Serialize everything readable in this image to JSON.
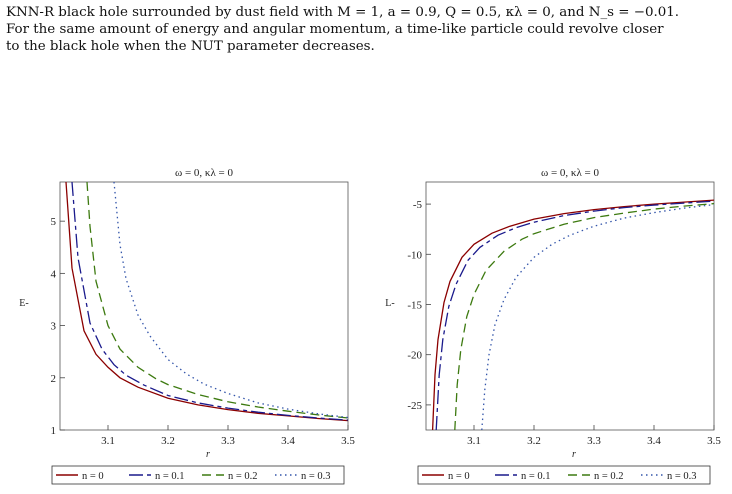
{
  "caption": {
    "line1": "KNN-R black hole surrounded by dust field with M = 1, a = 0.9, Q = 0.5, κλ = 0, and N_s = −0.01.",
    "line2": "For the same amount of energy and angular momentum, a time-like particle could revolve closer",
    "line3": "to the black hole when the NUT parameter decreases."
  },
  "colors": {
    "n0": "#8b0000",
    "n01": "#1a1a8c",
    "n02": "#3d7a10",
    "n03": "#3355aa"
  },
  "chart_data": [
    {
      "type": "line",
      "title": "ω = 0, κλ = 0",
      "xlabel": "r",
      "ylabel": "E-",
      "xlim": [
        3.02,
        3.5
      ],
      "ylim": [
        1.0,
        5.75
      ],
      "xticks": [
        3.1,
        3.2,
        3.3,
        3.4,
        3.5
      ],
      "yticks": [
        1,
        2,
        3,
        4,
        5
      ],
      "series": [
        {
          "name": "n = 0",
          "style": "solid",
          "x": [
            3.03,
            3.04,
            3.06,
            3.08,
            3.1,
            3.12,
            3.15,
            3.2,
            3.25,
            3.3,
            3.35,
            3.4,
            3.45,
            3.5
          ],
          "y": [
            5.75,
            4.1,
            2.9,
            2.45,
            2.2,
            2.0,
            1.82,
            1.61,
            1.48,
            1.39,
            1.32,
            1.27,
            1.22,
            1.18
          ]
        },
        {
          "name": "n = 0.1",
          "style": "longdash",
          "x": [
            3.04,
            3.05,
            3.07,
            3.09,
            3.11,
            3.13,
            3.16,
            3.2,
            3.25,
            3.3,
            3.35,
            3.4,
            3.45,
            3.5
          ],
          "y": [
            5.75,
            4.3,
            3.05,
            2.55,
            2.25,
            2.05,
            1.86,
            1.66,
            1.52,
            1.42,
            1.34,
            1.28,
            1.23,
            1.19
          ]
        },
        {
          "name": "n = 0.2",
          "style": "dash",
          "x": [
            3.065,
            3.07,
            3.08,
            3.1,
            3.12,
            3.15,
            3.18,
            3.2,
            3.25,
            3.3,
            3.35,
            3.4,
            3.45,
            3.5
          ],
          "y": [
            5.75,
            4.9,
            3.85,
            3.0,
            2.55,
            2.2,
            1.98,
            1.87,
            1.68,
            1.54,
            1.44,
            1.36,
            1.29,
            1.23
          ]
        },
        {
          "name": "n = 0.3",
          "style": "dot",
          "x": [
            3.11,
            3.12,
            3.13,
            3.15,
            3.17,
            3.2,
            3.23,
            3.26,
            3.3,
            3.35,
            3.4,
            3.45,
            3.5
          ],
          "y": [
            5.75,
            4.55,
            3.9,
            3.2,
            2.8,
            2.35,
            2.08,
            1.88,
            1.7,
            1.52,
            1.4,
            1.31,
            1.24
          ]
        }
      ],
      "legend": [
        "n = 0",
        "n = 0.1",
        "n = 0.2",
        "n = 0.3"
      ],
      "legend_position": "bottom"
    },
    {
      "type": "line",
      "title": "ω = 0, κλ = 0",
      "xlabel": "r",
      "ylabel": "L-",
      "xlim": [
        3.02,
        3.5
      ],
      "ylim": [
        -27.5,
        -2.8
      ],
      "xticks": [
        3.1,
        3.2,
        3.3,
        3.4,
        3.5
      ],
      "yticks": [
        -5,
        -10,
        -15,
        -20,
        -25
      ],
      "series": [
        {
          "name": "n = 0",
          "style": "solid",
          "x": [
            3.031,
            3.035,
            3.04,
            3.05,
            3.06,
            3.08,
            3.1,
            3.13,
            3.16,
            3.2,
            3.25,
            3.3,
            3.35,
            3.4,
            3.45,
            3.5
          ],
          "y": [
            -27.5,
            -22,
            -18.5,
            -14.8,
            -12.7,
            -10.3,
            -9.0,
            -7.9,
            -7.2,
            -6.5,
            -5.95,
            -5.55,
            -5.25,
            -5.0,
            -4.8,
            -4.6
          ]
        },
        {
          "name": "n = 0.1",
          "style": "longdash",
          "x": [
            3.037,
            3.042,
            3.048,
            3.058,
            3.07,
            3.09,
            3.11,
            3.14,
            3.17,
            3.2,
            3.25,
            3.3,
            3.35,
            3.4,
            3.45,
            3.5
          ],
          "y": [
            -27.5,
            -22,
            -18.5,
            -15.2,
            -13.0,
            -10.6,
            -9.3,
            -8.1,
            -7.35,
            -6.8,
            -6.15,
            -5.7,
            -5.35,
            -5.1,
            -4.9,
            -4.7
          ]
        },
        {
          "name": "n = 0.2",
          "style": "dash",
          "x": [
            3.068,
            3.072,
            3.078,
            3.088,
            3.1,
            3.12,
            3.15,
            3.18,
            3.2,
            3.25,
            3.3,
            3.35,
            3.4,
            3.45,
            3.5
          ],
          "y": [
            -27.5,
            -23,
            -19.5,
            -16.2,
            -14.0,
            -11.6,
            -9.7,
            -8.5,
            -7.95,
            -7.0,
            -6.35,
            -5.9,
            -5.5,
            -5.2,
            -4.95
          ]
        },
        {
          "name": "n = 0.3",
          "style": "dot",
          "x": [
            3.113,
            3.118,
            3.125,
            3.135,
            3.15,
            3.17,
            3.2,
            3.23,
            3.26,
            3.3,
            3.35,
            3.4,
            3.45,
            3.5
          ],
          "y": [
            -27.5,
            -23.5,
            -20.0,
            -17.0,
            -14.5,
            -12.3,
            -10.3,
            -9.0,
            -8.1,
            -7.2,
            -6.4,
            -5.85,
            -5.4,
            -5.05
          ]
        }
      ],
      "legend": [
        "n = 0",
        "n = 0.1",
        "n = 0.2",
        "n = 0.3"
      ],
      "legend_position": "bottom"
    }
  ]
}
